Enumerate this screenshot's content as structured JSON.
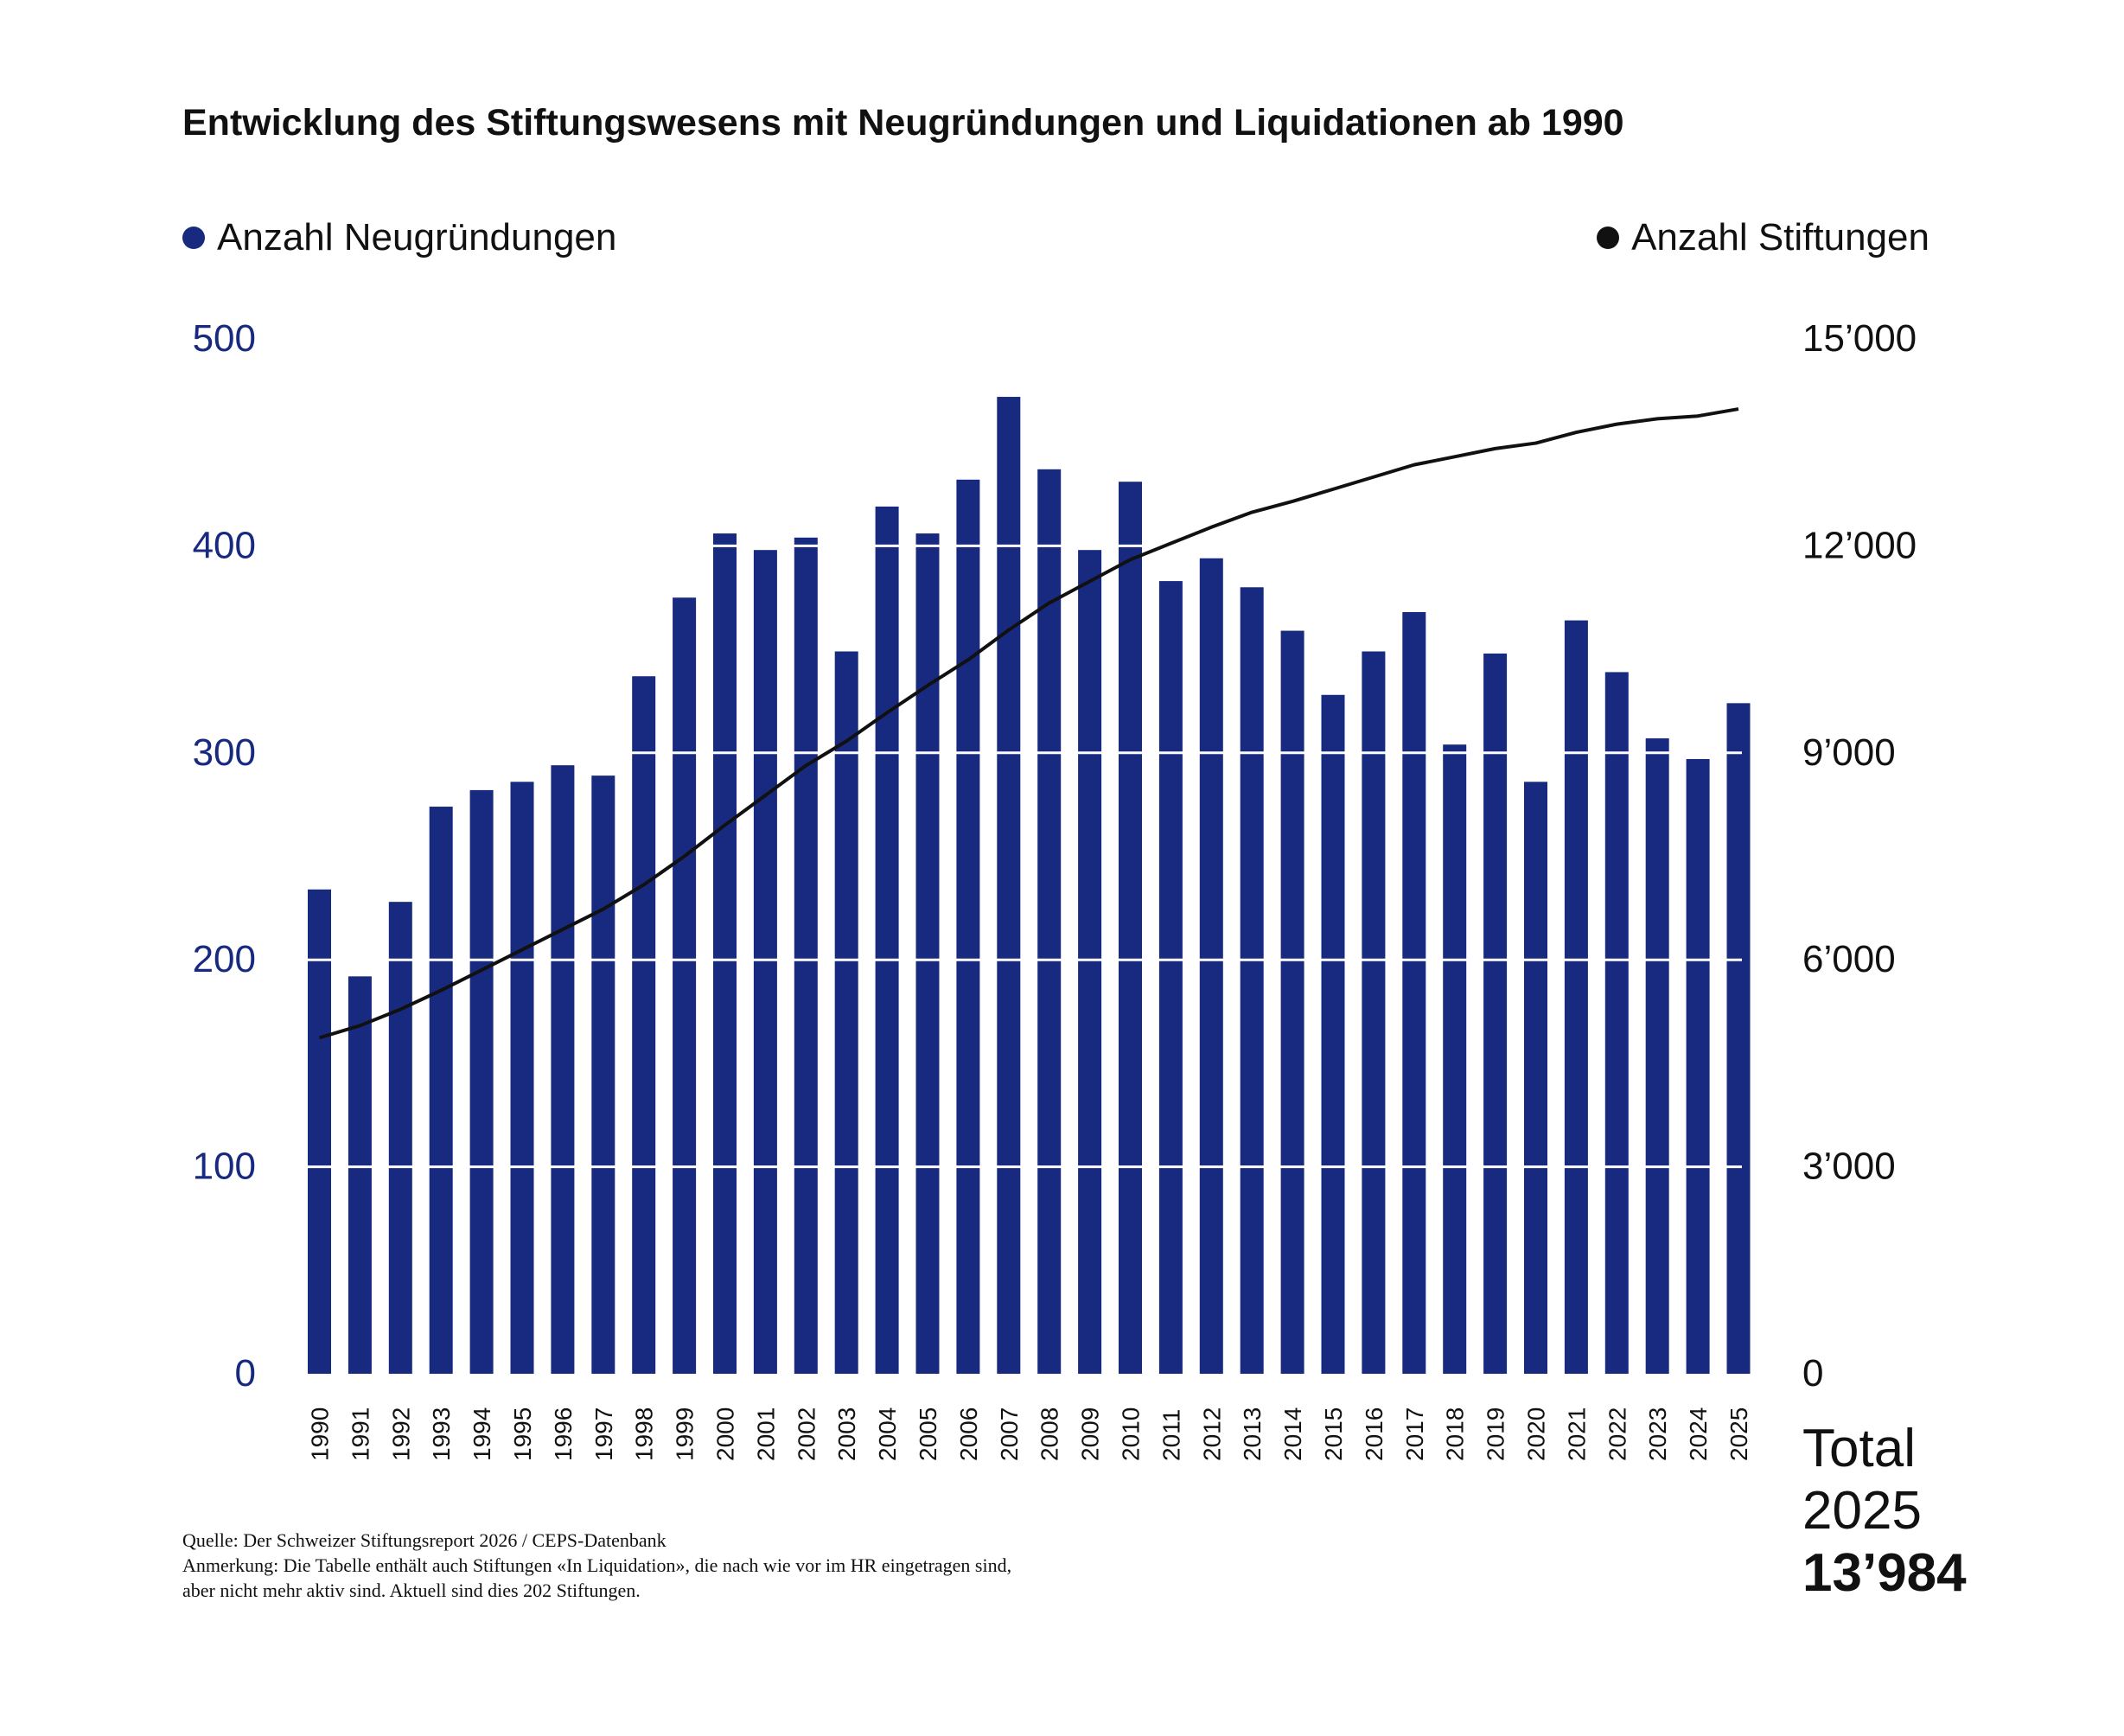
{
  "chart_data": {
    "type": "bar",
    "title": "Entwicklung des Stiftungswesens mit Neugründungen und Liquidationen ab 1990",
    "categories": [
      "1990",
      "1991",
      "1992",
      "1993",
      "1994",
      "1995",
      "1996",
      "1997",
      "1998",
      "1999",
      "2000",
      "2001",
      "2002",
      "2003",
      "2004",
      "2005",
      "2006",
      "2007",
      "2008",
      "2009",
      "2010",
      "2011",
      "2012",
      "2013",
      "2014",
      "2015",
      "2016",
      "2017",
      "2018",
      "2019",
      "2020",
      "2021",
      "2022",
      "2023",
      "2024",
      "2025"
    ],
    "series": [
      {
        "name": "Anzahl Neugründungen",
        "type": "bar",
        "axis": "left",
        "color": "#182a80",
        "values": [
          234,
          192,
          228,
          274,
          282,
          286,
          294,
          289,
          337,
          375,
          406,
          398,
          404,
          349,
          419,
          406,
          432,
          472,
          437,
          398,
          431,
          383,
          394,
          380,
          359,
          328,
          349,
          368,
          304,
          348,
          286,
          364,
          339,
          307,
          297,
          324
        ]
      },
      {
        "name": "Anzahl Stiftungen",
        "type": "line",
        "axis": "right",
        "color": "#111111",
        "values": [
          4870,
          5046,
          5282,
          5557,
          5851,
          6146,
          6440,
          6735,
          7088,
          7500,
          7952,
          8384,
          8816,
          9170,
          9582,
          9975,
          10348,
          10780,
          11172,
          11486,
          11800,
          12036,
          12271,
          12487,
          12645,
          12821,
          12998,
          13175,
          13292,
          13410,
          13489,
          13646,
          13764,
          13842,
          13882,
          13984
        ]
      }
    ],
    "left_axis": {
      "ylim": [
        0,
        500
      ],
      "ticks": [
        "0",
        "100",
        "200",
        "300",
        "400",
        "500"
      ],
      "color": "#182a80"
    },
    "right_axis": {
      "ylim": [
        0,
        15000
      ],
      "ticks": [
        "0",
        "3’000",
        "6’000",
        "9’000",
        "12’000",
        "15’000"
      ]
    },
    "grid": true,
    "legend": [
      {
        "label": "Anzahl Neugründungen",
        "color": "#182a80",
        "placement": "top-left"
      },
      {
        "label": "Anzahl Stiftungen",
        "color": "#111111",
        "placement": "top-right"
      }
    ]
  },
  "total": {
    "line1": "Total",
    "line2": "2025",
    "value": "13’984"
  },
  "footnotes": [
    "Quelle: Der Schweizer Stiftungsreport 2026 / CEPS-Datenbank",
    "Anmerkung: Die Tabelle enthält  auch Stiftungen «In Liquidation», die nach wie vor im HR eingetragen sind,",
    "aber nicht mehr aktiv sind. Aktuell sind dies 202 Stiftungen."
  ]
}
